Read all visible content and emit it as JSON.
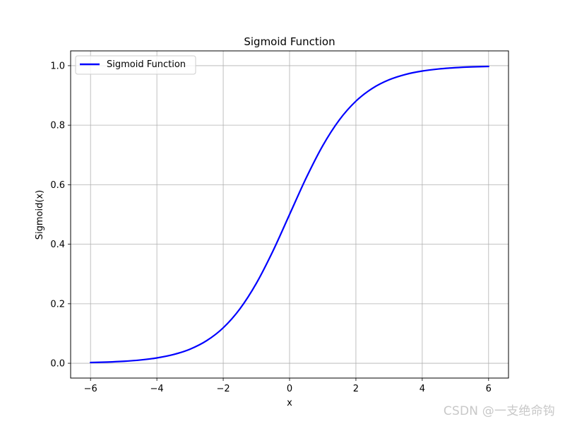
{
  "chart_data": {
    "type": "line",
    "title": "Sigmoid Function",
    "xlabel": "x",
    "ylabel": "Sigmoid(x)",
    "xlim": [
      -6.6,
      6.6
    ],
    "ylim": [
      -0.0497,
      1.0497
    ],
    "x_ticks": [
      -6,
      -4,
      -2,
      0,
      2,
      4,
      6
    ],
    "x_tick_labels": [
      "−6",
      "−4",
      "−2",
      "0",
      "2",
      "4",
      "6"
    ],
    "y_ticks": [
      0.0,
      0.2,
      0.4,
      0.6,
      0.8,
      1.0
    ],
    "y_tick_labels": [
      "0.0",
      "0.2",
      "0.4",
      "0.6",
      "0.8",
      "1.0"
    ],
    "grid": true,
    "legend_position": "upper-left",
    "series": [
      {
        "name": "Sigmoid Function",
        "color": "#0000ff",
        "x": [
          -6.0,
          -5.5,
          -5.0,
          -4.5,
          -4.0,
          -3.5,
          -3.0,
          -2.5,
          -2.0,
          -1.5,
          -1.0,
          -0.5,
          0.0,
          0.5,
          1.0,
          1.5,
          2.0,
          2.5,
          3.0,
          3.5,
          4.0,
          4.5,
          5.0,
          5.5,
          6.0
        ],
        "y": [
          0.0025,
          0.0041,
          0.0067,
          0.011,
          0.018,
          0.0293,
          0.0474,
          0.0759,
          0.1192,
          0.1824,
          0.2689,
          0.3775,
          0.5,
          0.6225,
          0.7311,
          0.8176,
          0.8808,
          0.9241,
          0.9526,
          0.9707,
          0.982,
          0.989,
          0.9933,
          0.9959,
          0.9975
        ]
      }
    ]
  },
  "watermark": "CSDN @一支绝命钩"
}
